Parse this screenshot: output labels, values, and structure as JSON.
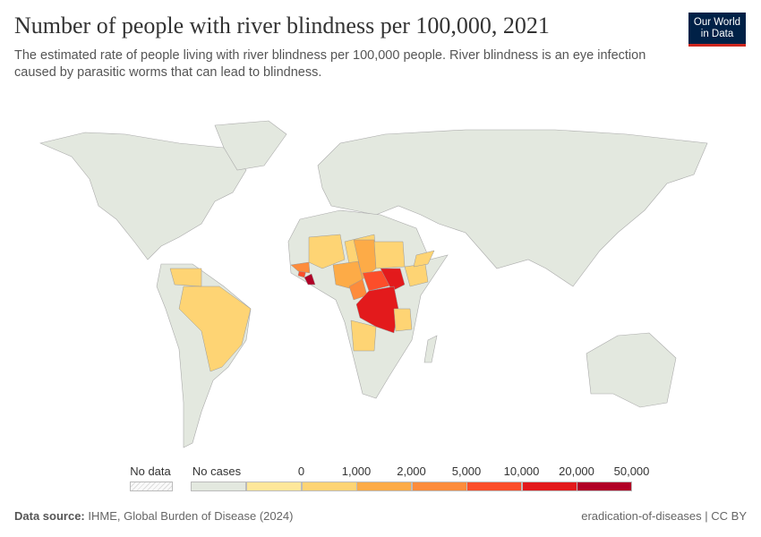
{
  "header": {
    "title": "Number of people with river blindness per 100,000, 2021",
    "subtitle": "The estimated rate of people living with river blindness per 100,000 people. River blindness is an eye infection caused by parasitic worms that can lead to blindness.",
    "logo_text": "Our World in Data"
  },
  "legend": {
    "no_data_label": "No data",
    "no_cases_label": "No cases",
    "no_data_color": "#f2f2f2",
    "no_cases_color": "#e3e8df",
    "bins": [
      {
        "label": "0",
        "color": "#fee79a"
      },
      {
        "label": "1,000",
        "color": "#fed474"
      },
      {
        "label": "2,000",
        "color": "#fdab47"
      },
      {
        "label": "5,000",
        "color": "#fd8c3c"
      },
      {
        "label": "10,000",
        "color": "#fc4e2a"
      },
      {
        "label": "20,000",
        "color": "#e31a1c"
      },
      {
        "label": "50,000",
        "color": "#b10026"
      }
    ]
  },
  "map": {
    "regions": [
      {
        "name": "Liberia",
        "bin": 6
      },
      {
        "name": "Sierra Leone",
        "bin": 4
      },
      {
        "name": "Guinea",
        "bin": 3
      },
      {
        "name": "Mali",
        "bin": 1
      },
      {
        "name": "Niger",
        "bin": 1
      },
      {
        "name": "Chad",
        "bin": 2
      },
      {
        "name": "Nigeria",
        "bin": 2
      },
      {
        "name": "Cameroon",
        "bin": 3
      },
      {
        "name": "Central African Republic",
        "bin": 4
      },
      {
        "name": "South Sudan",
        "bin": 5
      },
      {
        "name": "DR Congo",
        "bin": 5
      },
      {
        "name": "Sudan",
        "bin": 1
      },
      {
        "name": "Ethiopia",
        "bin": 1
      },
      {
        "name": "Yemen",
        "bin": 1
      },
      {
        "name": "Angola",
        "bin": 1
      },
      {
        "name": "Tanzania",
        "bin": 1
      },
      {
        "name": "Brazil",
        "bin": 1
      },
      {
        "name": "Venezuela",
        "bin": 1
      }
    ]
  },
  "footer": {
    "source_label": "Data source:",
    "source": "IHME, Global Burden of Disease (2024)",
    "right": "eradication-of-diseases | CC BY"
  }
}
